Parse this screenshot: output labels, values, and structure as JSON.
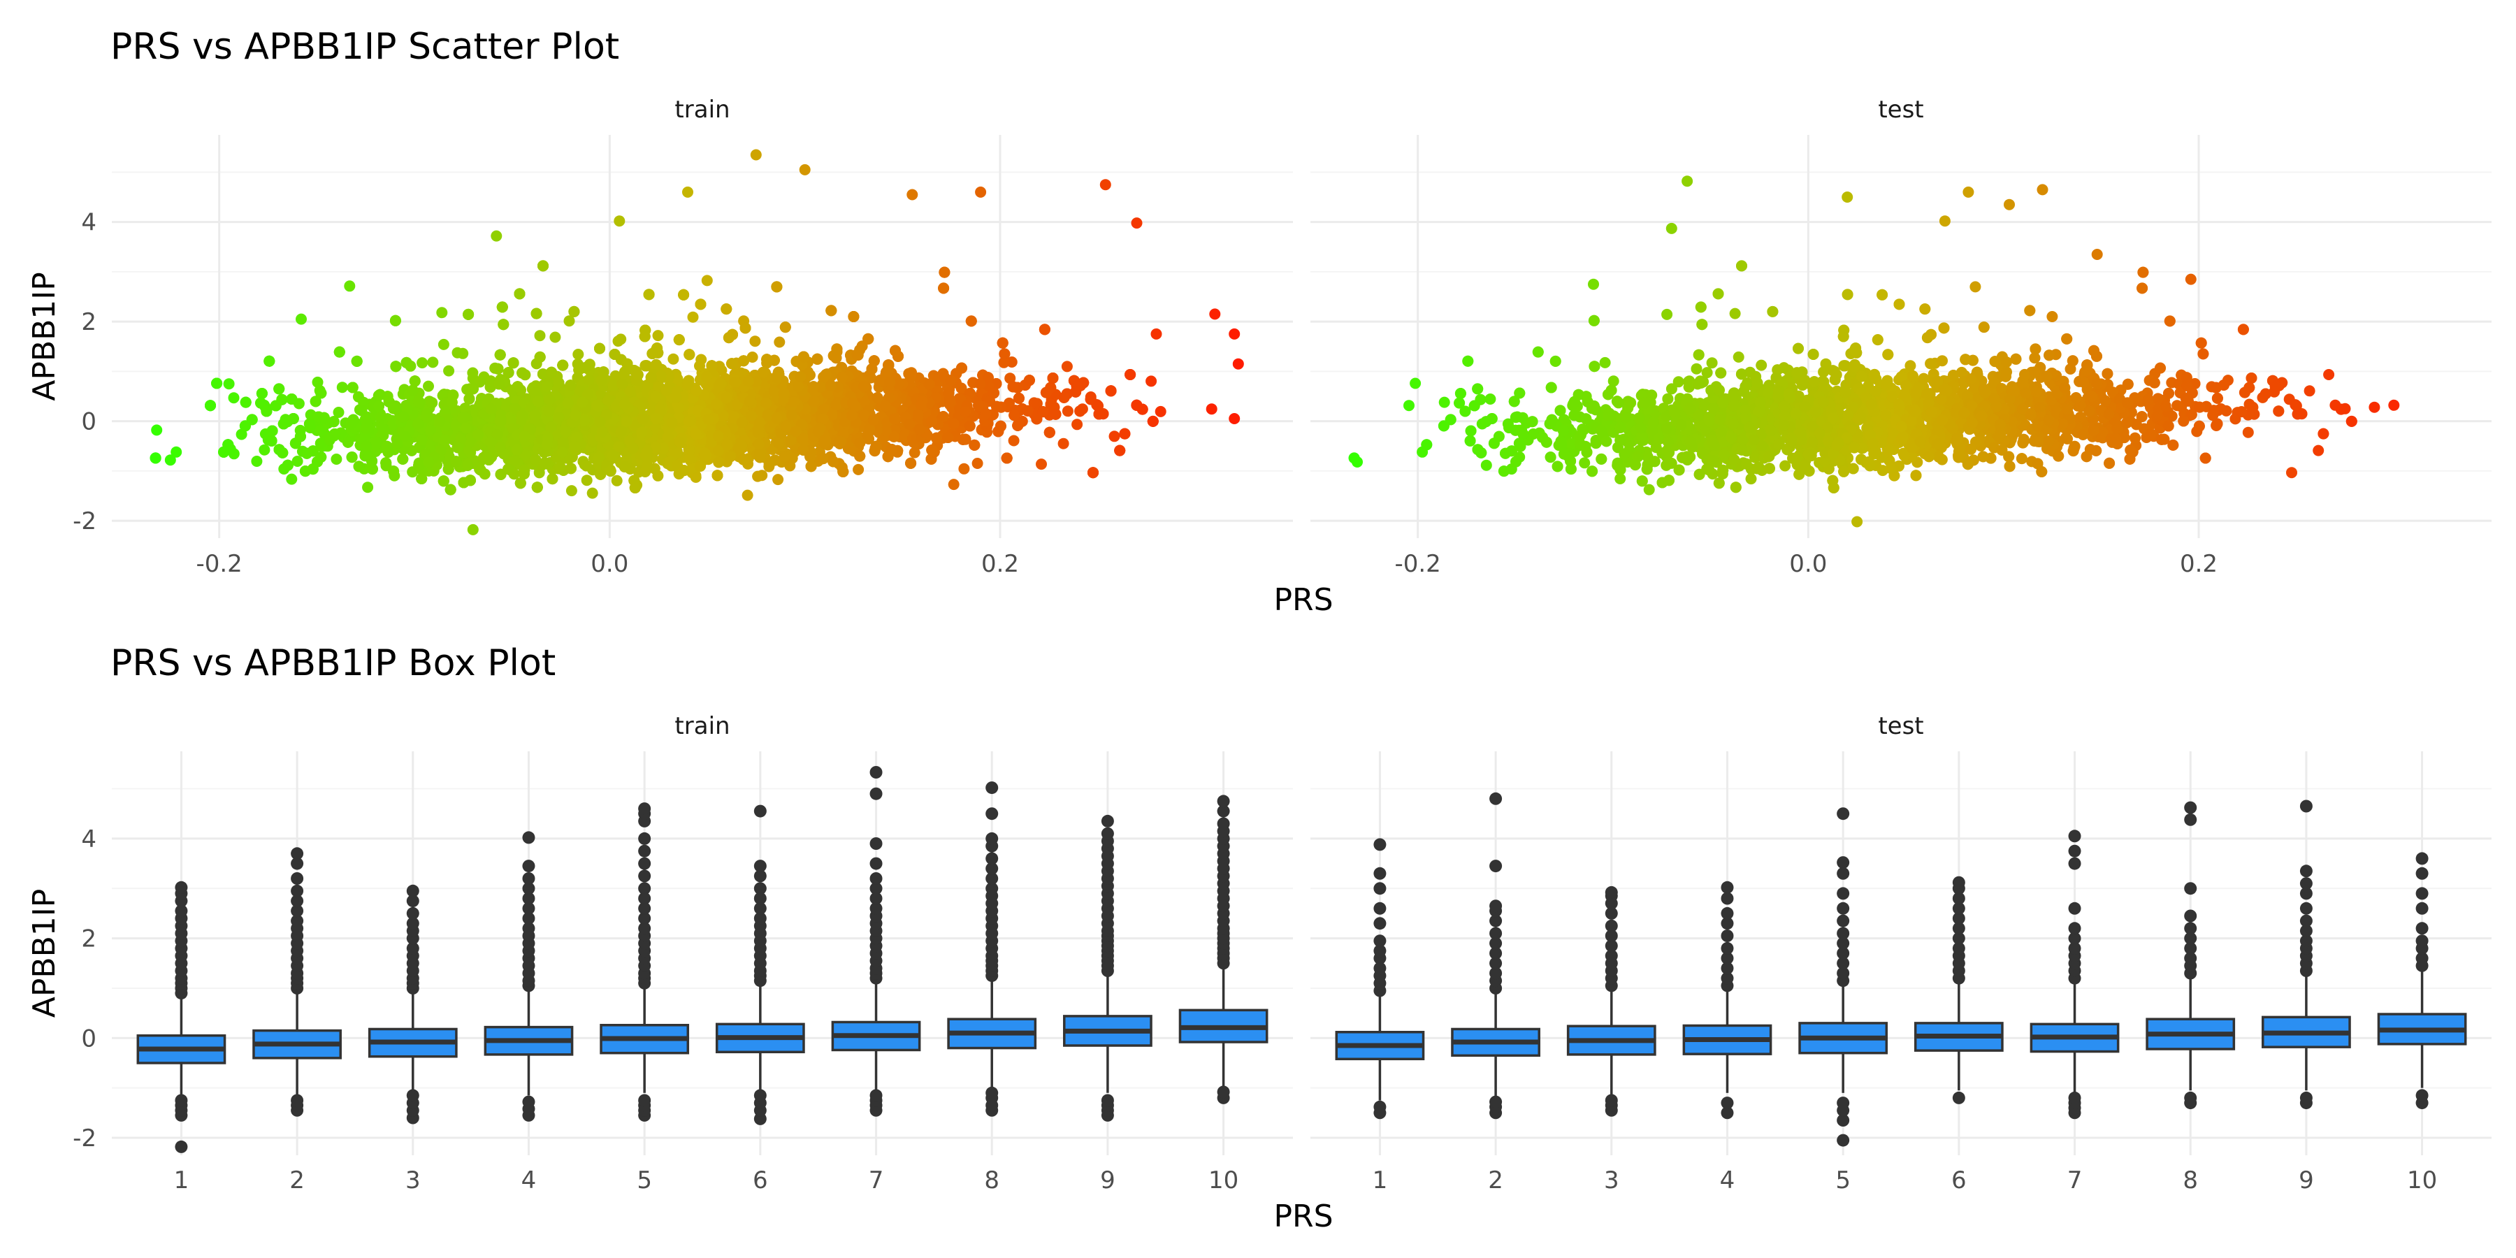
{
  "chart_data": [
    {
      "type": "scatter",
      "title": "PRS vs APBB1IP Scatter Plot",
      "xlabel": "PRS",
      "ylabel": "APBB1IP",
      "color_scale": {
        "low": "#33ff00",
        "mid": "#c8b400",
        "high": "#ff1a00"
      },
      "panels": [
        {
          "name": "train",
          "xlim": [
            -0.255,
            0.35
          ],
          "ylim": [
            -2.35,
            5.75
          ],
          "x_ticks": [
            -0.2,
            0.0,
            0.2
          ],
          "x_tick_labels": [
            "-0.2",
            "0.0",
            "0.2"
          ],
          "y_ticks": [
            -2,
            0,
            2,
            4
          ],
          "y_tick_labels": [
            "-2",
            "0",
            "2",
            "4"
          ],
          "n_points": 9000,
          "x_mean": 0.03,
          "x_sd": 0.085,
          "intercept": -0.02,
          "slope": 1.4,
          "outliers": [
            [
              -0.232,
              -0.18
            ],
            [
              -0.225,
              -0.78
            ],
            [
              -0.222,
              -0.62
            ],
            [
              -0.195,
              0.75
            ],
            [
              -0.158,
              2.05
            ],
            [
              -0.07,
              -2.18
            ],
            [
              -0.058,
              3.72
            ],
            [
              0.005,
              4.02
            ],
            [
              0.04,
              4.6
            ],
            [
              0.075,
              5.35
            ],
            [
              0.1,
              5.05
            ],
            [
              0.155,
              4.55
            ],
            [
              0.19,
              4.6
            ],
            [
              0.254,
              4.75
            ],
            [
              0.27,
              3.98
            ],
            [
              0.32,
              1.75
            ],
            [
              0.322,
              1.15
            ],
            [
              0.32,
              0.05
            ],
            [
              0.31,
              2.15
            ],
            [
              0.28,
              1.75
            ]
          ]
        },
        {
          "name": "test",
          "xlim": [
            -0.255,
            0.35
          ],
          "ylim": [
            -2.35,
            5.75
          ],
          "x_ticks": [
            -0.2,
            0.0,
            0.2
          ],
          "x_tick_labels": [
            "-0.2",
            "0.0",
            "0.2"
          ],
          "y_ticks": [
            -2,
            0,
            2,
            4
          ],
          "y_tick_labels": [
            "-2",
            "0",
            "2",
            "4"
          ],
          "n_points": 3500,
          "x_mean": 0.03,
          "x_sd": 0.085,
          "intercept": -0.02,
          "slope": 1.4,
          "outliers": [
            [
              -0.231,
              -0.82
            ],
            [
              -0.062,
              4.82
            ],
            [
              -0.07,
              3.87
            ],
            [
              0.025,
              -2.02
            ],
            [
              0.12,
              4.65
            ],
            [
              0.103,
              4.35
            ],
            [
              0.082,
              4.6
            ],
            [
              0.07,
              4.02
            ],
            [
              0.3,
              0.32
            ],
            [
              0.29,
              0.28
            ],
            [
              0.275,
              0.25
            ],
            [
              0.196,
              2.85
            ],
            [
              0.148,
              3.35
            ],
            [
              0.02,
              4.5
            ],
            [
              -0.11,
              2.75
            ]
          ]
        }
      ]
    },
    {
      "type": "box",
      "title": "PRS vs APBB1IP Box Plot",
      "xlabel": "PRS",
      "ylabel": "APBB1IP",
      "fill": "#2b8ff2",
      "categories": [
        "1",
        "2",
        "3",
        "4",
        "5",
        "6",
        "7",
        "8",
        "9",
        "10"
      ],
      "ylim": [
        -2.35,
        5.75
      ],
      "y_ticks": [
        -2,
        0,
        2,
        4
      ],
      "y_tick_labels": [
        "-2",
        "0",
        "2",
        "4"
      ],
      "panels": [
        {
          "name": "train",
          "boxes": [
            {
              "q1": -0.5,
              "median": -0.22,
              "q3": 0.05,
              "lower": -1.15,
              "upper": 0.85,
              "outliers": [
                -2.18,
                -1.55,
                -1.45,
                -1.35,
                -1.25,
                0.9,
                1.0,
                1.1,
                1.2,
                1.35,
                1.5,
                1.65,
                1.8,
                1.95,
                2.1,
                2.25,
                2.4,
                2.55,
                2.75,
                2.9,
                3.02
              ]
            },
            {
              "q1": -0.4,
              "median": -0.12,
              "q3": 0.15,
              "lower": -1.2,
              "upper": 0.95,
              "outliers": [
                -1.45,
                -1.35,
                -1.25,
                1.0,
                1.1,
                1.2,
                1.3,
                1.45,
                1.6,
                1.75,
                1.9,
                2.05,
                2.2,
                2.35,
                2.55,
                2.75,
                2.95,
                3.2,
                3.5,
                3.7
              ]
            },
            {
              "q1": -0.37,
              "median": -0.08,
              "q3": 0.18,
              "lower": -1.1,
              "upper": 0.95,
              "outliers": [
                -1.6,
                -1.45,
                -1.3,
                -1.15,
                1.0,
                1.1,
                1.2,
                1.35,
                1.5,
                1.65,
                1.8,
                2.0,
                2.15,
                2.3,
                2.5,
                2.75,
                2.95
              ]
            },
            {
              "q1": -0.33,
              "median": -0.05,
              "q3": 0.22,
              "lower": -1.15,
              "upper": 1.0,
              "outliers": [
                -1.55,
                -1.42,
                -1.28,
                1.05,
                1.15,
                1.3,
                1.45,
                1.6,
                1.75,
                1.9,
                2.05,
                2.2,
                2.4,
                2.6,
                2.8,
                3.0,
                3.2,
                3.45,
                4.02
              ]
            },
            {
              "q1": -0.3,
              "median": -0.01,
              "q3": 0.26,
              "lower": -1.1,
              "upper": 1.05,
              "outliers": [
                -1.55,
                -1.45,
                -1.35,
                -1.25,
                1.1,
                1.2,
                1.3,
                1.45,
                1.6,
                1.75,
                1.9,
                2.05,
                2.2,
                2.4,
                2.6,
                2.8,
                3.0,
                3.25,
                3.5,
                3.75,
                4.0,
                4.35,
                4.5,
                4.6
              ]
            },
            {
              "q1": -0.28,
              "median": 0.01,
              "q3": 0.28,
              "lower": -1.1,
              "upper": 1.1,
              "outliers": [
                -1.62,
                -1.45,
                -1.3,
                -1.15,
                1.15,
                1.25,
                1.35,
                1.5,
                1.65,
                1.8,
                1.95,
                2.1,
                2.25,
                2.4,
                2.6,
                2.8,
                3.0,
                3.25,
                3.45,
                4.55
              ]
            },
            {
              "q1": -0.24,
              "median": 0.05,
              "q3": 0.32,
              "lower": -1.05,
              "upper": 1.15,
              "outliers": [
                -1.45,
                -1.35,
                -1.25,
                -1.15,
                1.2,
                1.3,
                1.4,
                1.55,
                1.7,
                1.85,
                2.0,
                2.15,
                2.3,
                2.45,
                2.6,
                2.8,
                3.0,
                3.2,
                3.5,
                3.9,
                4.9,
                5.33
              ]
            },
            {
              "q1": -0.2,
              "median": 0.1,
              "q3": 0.38,
              "lower": -1.05,
              "upper": 1.2,
              "outliers": [
                -1.45,
                -1.35,
                -1.2,
                -1.1,
                1.25,
                1.35,
                1.45,
                1.55,
                1.65,
                1.8,
                1.95,
                2.1,
                2.25,
                2.4,
                2.55,
                2.7,
                2.85,
                3.0,
                3.2,
                3.4,
                3.6,
                3.85,
                4.0,
                4.5,
                5.02
              ]
            },
            {
              "q1": -0.15,
              "median": 0.14,
              "q3": 0.44,
              "lower": -1.1,
              "upper": 1.3,
              "outliers": [
                -1.55,
                -1.45,
                -1.35,
                -1.25,
                1.35,
                1.45,
                1.55,
                1.65,
                1.75,
                1.85,
                1.95,
                2.05,
                2.15,
                2.3,
                2.45,
                2.6,
                2.75,
                2.9,
                3.05,
                3.2,
                3.35,
                3.5,
                3.65,
                3.8,
                3.95,
                4.1,
                4.35
              ]
            },
            {
              "q1": -0.08,
              "median": 0.21,
              "q3": 0.56,
              "lower": -1.0,
              "upper": 1.45,
              "outliers": [
                -1.2,
                -1.08,
                1.5,
                1.6,
                1.7,
                1.8,
                1.9,
                2.0,
                2.1,
                2.2,
                2.35,
                2.5,
                2.65,
                2.8,
                2.95,
                3.1,
                3.25,
                3.4,
                3.55,
                3.7,
                3.85,
                4.0,
                4.15,
                4.3,
                4.55,
                4.75
              ]
            }
          ]
        },
        {
          "name": "test",
          "boxes": [
            {
              "q1": -0.42,
              "median": -0.15,
              "q3": 0.12,
              "lower": -1.25,
              "upper": 0.9,
              "outliers": [
                -1.5,
                -1.38,
                0.95,
                1.1,
                1.25,
                1.4,
                1.6,
                1.75,
                1.95,
                2.3,
                2.6,
                3.0,
                3.3,
                3.88
              ]
            },
            {
              "q1": -0.35,
              "median": -0.08,
              "q3": 0.18,
              "lower": -1.2,
              "upper": 0.95,
              "outliers": [
                -1.5,
                -1.38,
                -1.28,
                1.0,
                1.15,
                1.3,
                1.5,
                1.7,
                1.9,
                2.1,
                2.35,
                2.55,
                2.65,
                3.45,
                4.8
              ]
            },
            {
              "q1": -0.33,
              "median": -0.05,
              "q3": 0.24,
              "lower": -1.15,
              "upper": 1.0,
              "outliers": [
                -1.45,
                -1.35,
                -1.25,
                1.05,
                1.2,
                1.35,
                1.5,
                1.65,
                1.85,
                2.05,
                2.25,
                2.5,
                2.7,
                2.85,
                2.92
              ]
            },
            {
              "q1": -0.32,
              "median": -0.03,
              "q3": 0.25,
              "lower": -1.1,
              "upper": 1.0,
              "outliers": [
                -1.5,
                -1.3,
                1.05,
                1.2,
                1.4,
                1.6,
                1.8,
                2.05,
                2.3,
                2.5,
                2.8,
                3.02
              ]
            },
            {
              "q1": -0.3,
              "median": 0.0,
              "q3": 0.3,
              "lower": -1.1,
              "upper": 1.05,
              "outliers": [
                -2.05,
                -1.65,
                -1.45,
                -1.3,
                1.15,
                1.3,
                1.5,
                1.7,
                1.9,
                2.1,
                2.35,
                2.6,
                2.9,
                3.3,
                3.52,
                4.5
              ]
            },
            {
              "q1": -0.25,
              "median": 0.04,
              "q3": 0.3,
              "lower": -1.05,
              "upper": 1.1,
              "outliers": [
                -1.2,
                1.2,
                1.35,
                1.5,
                1.65,
                1.8,
                2.0,
                2.2,
                2.4,
                2.6,
                2.8,
                3.0,
                3.12
              ]
            },
            {
              "q1": -0.27,
              "median": 0.02,
              "q3": 0.28,
              "lower": -1.1,
              "upper": 1.1,
              "outliers": [
                -1.5,
                -1.4,
                -1.3,
                -1.2,
                1.2,
                1.35,
                1.5,
                1.65,
                1.8,
                2.0,
                2.2,
                2.6,
                3.5,
                3.75,
                4.05
              ]
            },
            {
              "q1": -0.22,
              "median": 0.08,
              "q3": 0.38,
              "lower": -1.05,
              "upper": 1.2,
              "outliers": [
                -1.3,
                -1.2,
                1.3,
                1.45,
                1.6,
                1.8,
                2.0,
                2.2,
                2.45,
                3.0,
                4.38,
                4.62
              ]
            },
            {
              "q1": -0.18,
              "median": 0.1,
              "q3": 0.42,
              "lower": -1.05,
              "upper": 1.25,
              "outliers": [
                -1.3,
                -1.2,
                1.35,
                1.5,
                1.65,
                1.8,
                1.95,
                2.15,
                2.35,
                2.6,
                2.9,
                3.1,
                3.35,
                4.65
              ]
            },
            {
              "q1": -0.12,
              "median": 0.16,
              "q3": 0.48,
              "lower": -1.0,
              "upper": 1.35,
              "outliers": [
                -1.3,
                -1.15,
                1.45,
                1.6,
                1.8,
                1.95,
                2.2,
                2.6,
                2.9,
                3.3,
                3.6
              ]
            }
          ]
        }
      ]
    }
  ]
}
